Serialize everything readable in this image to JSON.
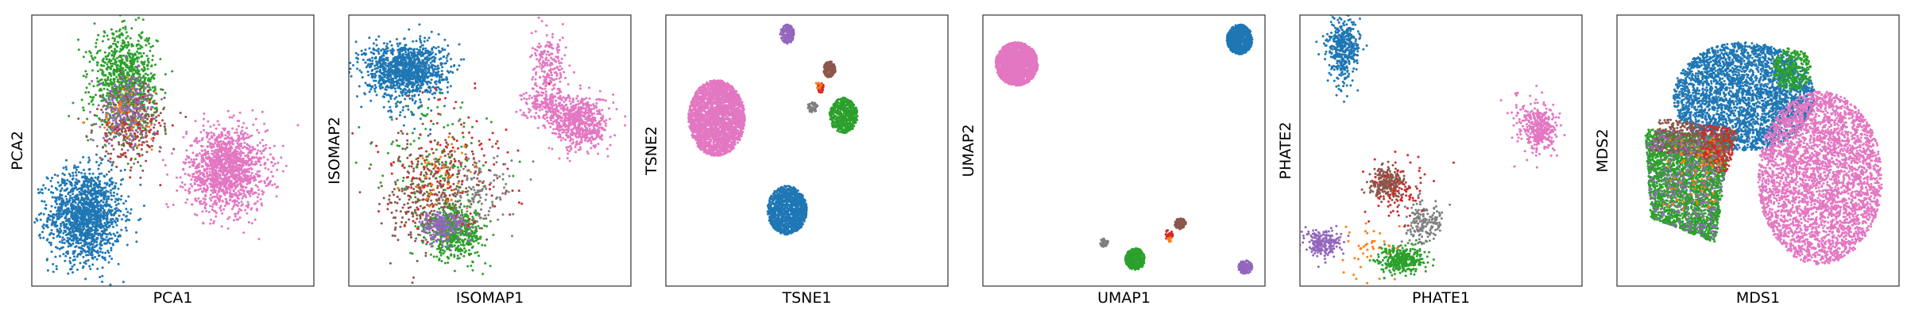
{
  "chart_data": [
    {
      "type": "scatter",
      "xlabel": "PCA1",
      "ylabel": "PCA2",
      "xlim": [
        0,
        1
      ],
      "ylim": [
        0,
        1
      ],
      "grid": false,
      "clusters": [
        {
          "color": "#1f77b4",
          "center": [
            0.19,
            0.26
          ],
          "spread": [
            0.065,
            0.085
          ],
          "n": 1500
        },
        {
          "color": "#e377c2",
          "center": [
            0.69,
            0.43
          ],
          "spread": [
            0.07,
            0.075
          ],
          "n": 1400
        },
        {
          "color": "#2ca02c",
          "center": [
            0.33,
            0.76
          ],
          "spread": [
            0.055,
            0.09
          ],
          "n": 900
        },
        {
          "color": "#8c564b",
          "center": [
            0.35,
            0.6
          ],
          "spread": [
            0.06,
            0.07
          ],
          "n": 300
        },
        {
          "color": "#9467bd",
          "center": [
            0.34,
            0.66
          ],
          "spread": [
            0.05,
            0.06
          ],
          "n": 200
        },
        {
          "color": "#d62728",
          "center": [
            0.36,
            0.58
          ],
          "spread": [
            0.06,
            0.07
          ],
          "n": 60
        },
        {
          "color": "#7f7f7f",
          "center": [
            0.33,
            0.62
          ],
          "spread": [
            0.05,
            0.06
          ],
          "n": 60
        },
        {
          "color": "#ff7f0e",
          "center": [
            0.33,
            0.64
          ],
          "spread": [
            0.05,
            0.05
          ],
          "n": 40
        }
      ]
    },
    {
      "type": "scatter",
      "xlabel": "ISOMAP1",
      "ylabel": "ISOMAP2",
      "xlim": [
        0,
        1
      ],
      "ylim": [
        0,
        1
      ],
      "grid": false,
      "clusters": [
        {
          "color": "#1f77b4",
          "center": [
            0.2,
            0.8
          ],
          "spread": [
            0.07,
            0.05
          ],
          "n": 1200
        },
        {
          "color": "#1f77b4",
          "center": [
            0.22,
            0.67
          ],
          "spread": [
            0.06,
            0.05
          ],
          "n": 40
        },
        {
          "color": "#e377c2",
          "center": [
            0.82,
            0.6
          ],
          "spread": [
            0.05,
            0.05
          ],
          "n": 600
        },
        {
          "color": "#e377c2",
          "center": [
            0.7,
            0.67
          ],
          "spread": [
            0.04,
            0.03
          ],
          "n": 200
        },
        {
          "color": "#e377c2",
          "center": [
            0.71,
            0.8
          ],
          "spread": [
            0.03,
            0.06
          ],
          "n": 200
        },
        {
          "color": "#8c564b",
          "center": [
            0.3,
            0.34
          ],
          "spread": [
            0.08,
            0.1
          ],
          "n": 450
        },
        {
          "color": "#2ca02c",
          "center": [
            0.38,
            0.2
          ],
          "spread": [
            0.05,
            0.05
          ],
          "n": 500
        },
        {
          "color": "#2ca02c",
          "center": [
            0.3,
            0.45
          ],
          "spread": [
            0.1,
            0.12
          ],
          "n": 120
        },
        {
          "color": "#9467bd",
          "center": [
            0.33,
            0.22
          ],
          "spread": [
            0.04,
            0.03
          ],
          "n": 200
        },
        {
          "color": "#d62728",
          "center": [
            0.35,
            0.45
          ],
          "spread": [
            0.13,
            0.12
          ],
          "n": 140
        },
        {
          "color": "#7f7f7f",
          "center": [
            0.46,
            0.34
          ],
          "spread": [
            0.06,
            0.07
          ],
          "n": 120
        },
        {
          "color": "#ff7f0e",
          "center": [
            0.33,
            0.38
          ],
          "spread": [
            0.06,
            0.08
          ],
          "n": 40
        }
      ]
    },
    {
      "type": "scatter",
      "xlabel": "TSNE1",
      "ylabel": "TSNE2",
      "xlim": [
        0,
        1
      ],
      "ylim": [
        0,
        1
      ],
      "grid": false,
      "clusters": [
        {
          "color": "#e377c2",
          "center": [
            0.18,
            0.62
          ],
          "radius": [
            0.1,
            0.14
          ],
          "n": 2500
        },
        {
          "color": "#1f77b4",
          "center": [
            0.43,
            0.28
          ],
          "radius": [
            0.07,
            0.09
          ],
          "n": 1200
        },
        {
          "color": "#2ca02c",
          "center": [
            0.63,
            0.63
          ],
          "radius": [
            0.05,
            0.065
          ],
          "n": 550
        },
        {
          "color": "#9467bd",
          "center": [
            0.43,
            0.93
          ],
          "radius": [
            0.025,
            0.035
          ],
          "n": 170
        },
        {
          "color": "#8c564b",
          "center": [
            0.58,
            0.8
          ],
          "radius": [
            0.022,
            0.03
          ],
          "n": 150
        },
        {
          "color": "#7f7f7f",
          "center": [
            0.52,
            0.66
          ],
          "radius": [
            0.018,
            0.02
          ],
          "n": 60
        },
        {
          "color": "#d62728",
          "center": [
            0.55,
            0.73
          ],
          "radius": [
            0.012,
            0.02
          ],
          "n": 25
        },
        {
          "color": "#ff7f0e",
          "center": [
            0.54,
            0.74
          ],
          "radius": [
            0.012,
            0.012
          ],
          "n": 10
        }
      ]
    },
    {
      "type": "scatter",
      "xlabel": "UMAP1",
      "ylabel": "UMAP2",
      "xlim": [
        0,
        1
      ],
      "ylim": [
        0,
        1
      ],
      "grid": false,
      "clusters": [
        {
          "color": "#e377c2",
          "center": [
            0.12,
            0.82
          ],
          "radius": [
            0.075,
            0.08
          ],
          "n": 1800
        },
        {
          "color": "#1f77b4",
          "center": [
            0.91,
            0.91
          ],
          "radius": [
            0.045,
            0.055
          ],
          "n": 900
        },
        {
          "color": "#2ca02c",
          "center": [
            0.54,
            0.1
          ],
          "radius": [
            0.035,
            0.04
          ],
          "n": 350
        },
        {
          "color": "#9467bd",
          "center": [
            0.93,
            0.07
          ],
          "radius": [
            0.025,
            0.025
          ],
          "n": 160
        },
        {
          "color": "#8c564b",
          "center": [
            0.7,
            0.23
          ],
          "radius": [
            0.02,
            0.02
          ],
          "n": 120
        },
        {
          "color": "#7f7f7f",
          "center": [
            0.43,
            0.16
          ],
          "radius": [
            0.015,
            0.015
          ],
          "n": 60
        },
        {
          "color": "#d62728",
          "center": [
            0.66,
            0.19
          ],
          "radius": [
            0.015,
            0.02
          ],
          "n": 30
        },
        {
          "color": "#ff7f0e",
          "center": [
            0.66,
            0.17
          ],
          "radius": [
            0.01,
            0.01
          ],
          "n": 10
        }
      ]
    },
    {
      "type": "scatter",
      "xlabel": "PHATE1",
      "ylabel": "PHATE2",
      "xlim": [
        0,
        1
      ],
      "ylim": [
        0,
        1
      ],
      "grid": false,
      "clusters": [
        {
          "color": "#1f77b4",
          "center": [
            0.15,
            0.89
          ],
          "spread": [
            0.03,
            0.05
          ],
          "n": 400
        },
        {
          "color": "#1f77b4",
          "center": [
            0.15,
            0.78
          ],
          "spread": [
            0.02,
            0.04
          ],
          "n": 40
        },
        {
          "color": "#e377c2",
          "center": [
            0.85,
            0.58
          ],
          "spread": [
            0.03,
            0.04
          ],
          "n": 350
        },
        {
          "color": "#e377c2",
          "center": [
            0.8,
            0.62
          ],
          "spread": [
            0.04,
            0.06
          ],
          "n": 50
        },
        {
          "color": "#8c564b",
          "center": [
            0.31,
            0.38
          ],
          "spread": [
            0.03,
            0.03
          ],
          "n": 250
        },
        {
          "color": "#2ca02c",
          "center": [
            0.36,
            0.1
          ],
          "spread": [
            0.04,
            0.025
          ],
          "n": 350
        },
        {
          "color": "#9467bd",
          "center": [
            0.08,
            0.16
          ],
          "spread": [
            0.03,
            0.025
          ],
          "n": 220
        },
        {
          "color": "#7f7f7f",
          "center": [
            0.44,
            0.23
          ],
          "spread": [
            0.03,
            0.04
          ],
          "n": 180
        },
        {
          "color": "#d62728",
          "center": [
            0.35,
            0.35
          ],
          "spread": [
            0.06,
            0.07
          ],
          "n": 80
        },
        {
          "color": "#ff7f0e",
          "center": [
            0.25,
            0.14
          ],
          "spread": [
            0.05,
            0.05
          ],
          "n": 40
        }
      ]
    },
    {
      "type": "scatter",
      "xlabel": "MDS1",
      "ylabel": "MDS2",
      "xlim": [
        0,
        1
      ],
      "ylim": [
        0,
        1
      ],
      "grid": false,
      "clusters": [
        {
          "color": "#1f77b4",
          "shape": "ellipse",
          "center": [
            0.45,
            0.7
          ],
          "radius": [
            0.25,
            0.2
          ],
          "n": 3200
        },
        {
          "color": "#e377c2",
          "shape": "ellipse",
          "center": [
            0.72,
            0.4
          ],
          "radius": [
            0.22,
            0.32
          ],
          "n": 3600
        },
        {
          "color": "#2ca02c",
          "shape": "polygon",
          "vertices": [
            [
              0.1,
              0.58
            ],
            [
              0.4,
              0.55
            ],
            [
              0.35,
              0.16
            ],
            [
              0.12,
              0.25
            ]
          ],
          "n": 2600
        },
        {
          "color": "#8c564b",
          "shape": "polygon",
          "vertices": [
            [
              0.15,
              0.62
            ],
            [
              0.43,
              0.58
            ],
            [
              0.4,
              0.46
            ],
            [
              0.12,
              0.5
            ]
          ],
          "n": 500
        },
        {
          "color": "#9467bd",
          "shape": "polygon",
          "vertices": [
            [
              0.1,
              0.58
            ],
            [
              0.4,
              0.55
            ],
            [
              0.35,
              0.16
            ],
            [
              0.12,
              0.25
            ]
          ],
          "n": 300
        },
        {
          "color": "#d62728",
          "shape": "polygon",
          "vertices": [
            [
              0.3,
              0.6
            ],
            [
              0.42,
              0.58
            ],
            [
              0.4,
              0.4
            ],
            [
              0.3,
              0.45
            ]
          ],
          "n": 150
        },
        {
          "color": "#7f7f7f",
          "shape": "polygon",
          "vertices": [
            [
              0.18,
              0.55
            ],
            [
              0.38,
              0.55
            ],
            [
              0.35,
              0.25
            ],
            [
              0.16,
              0.3
            ]
          ],
          "n": 120
        },
        {
          "color": "#ff7f0e",
          "shape": "polygon",
          "vertices": [
            [
              0.18,
              0.55
            ],
            [
              0.38,
              0.55
            ],
            [
              0.35,
              0.25
            ],
            [
              0.16,
              0.3
            ]
          ],
          "n": 80
        },
        {
          "color": "#2ca02c",
          "shape": "ellipse",
          "center": [
            0.62,
            0.8
          ],
          "radius": [
            0.07,
            0.08
          ],
          "n": 300
        }
      ]
    }
  ]
}
